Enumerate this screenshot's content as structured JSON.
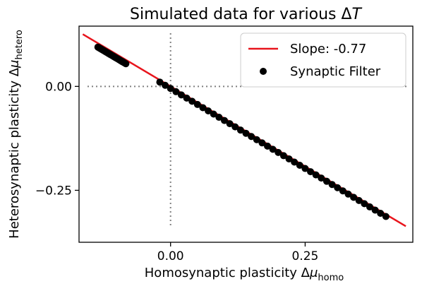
{
  "chart_data": {
    "type": "scatter",
    "title": "Simulated data for various ΔT",
    "title_main": "Simulated data for various Δ",
    "title_italic": "T",
    "xlabel_main": "Homosynaptic plasticity Δ",
    "xlabel_mu": "μ",
    "xlabel_sub": "homo",
    "ylabel_main": "Heterosynaptic plasticity Δ",
    "ylabel_mu": "μ",
    "ylabel_sub": "hetero",
    "xlim": [
      -0.17,
      0.45
    ],
    "ylim": [
      -0.375,
      0.145
    ],
    "xticks": [
      0.0,
      0.25
    ],
    "xtick_labels": [
      "0.00",
      "0.25"
    ],
    "yticks": [
      0.0,
      -0.25
    ],
    "ytick_labels": [
      "0.00",
      "−0.25"
    ],
    "reference_lines": {
      "x": 0.0,
      "y": 0.0,
      "style": "dotted",
      "color": "#808080"
    },
    "fit_line": {
      "name": "Slope: -0.77",
      "color": "#e8141c",
      "slope": -0.77,
      "x_start": -0.163,
      "x_end": 0.437,
      "y_start": 0.1255,
      "y_end": -0.3365
    },
    "scatter_series": {
      "name": "Synaptic Filter",
      "color": "#000000",
      "x": [
        -0.135,
        -0.133,
        -0.131,
        -0.129,
        -0.127,
        -0.125,
        -0.123,
        -0.121,
        -0.119,
        -0.117,
        -0.115,
        -0.113,
        -0.111,
        -0.109,
        -0.107,
        -0.105,
        -0.103,
        -0.101,
        -0.099,
        -0.097,
        -0.095,
        -0.093,
        -0.091,
        -0.089,
        -0.087,
        -0.085,
        -0.083,
        -0.02,
        -0.01,
        0.0,
        0.01,
        0.02,
        0.03,
        0.04,
        0.05,
        0.06,
        0.07,
        0.08,
        0.09,
        0.1,
        0.11,
        0.12,
        0.13,
        0.14,
        0.15,
        0.16,
        0.17,
        0.18,
        0.19,
        0.2,
        0.21,
        0.22,
        0.23,
        0.24,
        0.25,
        0.26,
        0.27,
        0.28,
        0.29,
        0.3,
        0.31,
        0.32,
        0.33,
        0.34,
        0.35,
        0.36,
        0.37,
        0.38,
        0.39,
        0.4
      ],
      "y": [
        0.0945,
        0.093,
        0.0914,
        0.0899,
        0.0883,
        0.0868,
        0.0853,
        0.0837,
        0.0822,
        0.0807,
        0.0791,
        0.0776,
        0.076,
        0.0745,
        0.073,
        0.0714,
        0.0699,
        0.0683,
        0.0668,
        0.0653,
        0.0637,
        0.0622,
        0.0606,
        0.0591,
        0.0576,
        0.056,
        0.0545,
        0.0104,
        0.0027,
        -0.005,
        -0.0127,
        -0.0204,
        -0.0281,
        -0.0358,
        -0.0435,
        -0.0512,
        -0.0589,
        -0.0666,
        -0.0743,
        -0.082,
        -0.0897,
        -0.0974,
        -0.1051,
        -0.1128,
        -0.1205,
        -0.1282,
        -0.1359,
        -0.1436,
        -0.1513,
        -0.159,
        -0.1667,
        -0.1744,
        -0.1821,
        -0.1898,
        -0.1975,
        -0.2052,
        -0.2129,
        -0.2206,
        -0.2283,
        -0.236,
        -0.2437,
        -0.2514,
        -0.2591,
        -0.2668,
        -0.2745,
        -0.2822,
        -0.2899,
        -0.2976,
        -0.3053,
        -0.313
      ]
    },
    "legend_position": "upper right",
    "grid": false
  }
}
